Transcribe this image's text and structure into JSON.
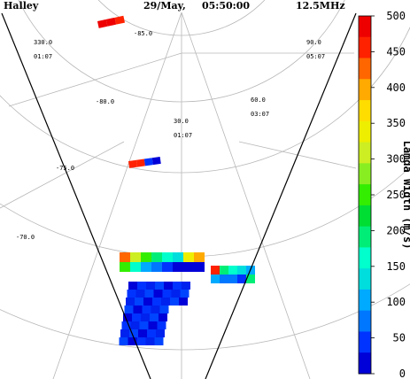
{
  "header": {
    "station": "Halley",
    "date": "29/May,",
    "time": "05:50:00",
    "frequency": "12.5MHz"
  },
  "map": {
    "lat_labels": [
      "-80.0",
      "-85.0",
      "-75.0",
      "-70.0"
    ],
    "lon_labels": [
      {
        "value": "330.0",
        "lt": "01:07"
      },
      {
        "value": "30.0",
        "lt": "01:07"
      },
      {
        "value": "60.0",
        "lt": "03:07"
      },
      {
        "value": "90.0",
        "lt": "05:07"
      }
    ]
  },
  "colorbar": {
    "title": "Lamda Width (m/s)",
    "ticks": [
      "500",
      "450",
      "400",
      "350",
      "300",
      "250",
      "200",
      "150",
      "100",
      "50",
      "0"
    ],
    "range": [
      0,
      500
    ],
    "colors": [
      "#0000d8",
      "#0033ff",
      "#0077ff",
      "#00aaff",
      "#00dddd",
      "#00ffcc",
      "#00ee77",
      "#00dd33",
      "#33ee00",
      "#88ee22",
      "#ccee22",
      "#eeee00",
      "#ffdd00",
      "#ffaa00",
      "#ff6600",
      "#ff2200",
      "#ee0000"
    ]
  },
  "chart_data": {
    "type": "heatmap",
    "title": "",
    "value_label": "Lamda Width (m/s)",
    "vrange": [
      0,
      500
    ],
    "note_values": "cell values in m/s, grouped per contiguous patch",
    "patches": [
      {
        "name": "far-echo-north",
        "values": [
          480,
          490,
          470
        ]
      },
      {
        "name": "far-echo-mid",
        "values": [
          470,
          460,
          30,
          20
        ]
      },
      {
        "name": "near-echo-main",
        "values": [
          420,
          300,
          250,
          180,
          160,
          140,
          330,
          400,
          240,
          150,
          90,
          60,
          40,
          20,
          10,
          5
        ]
      },
      {
        "name": "near-echo-east",
        "values": [
          460,
          180,
          150,
          120,
          110,
          90,
          70,
          60,
          50,
          200
        ]
      }
    ]
  }
}
